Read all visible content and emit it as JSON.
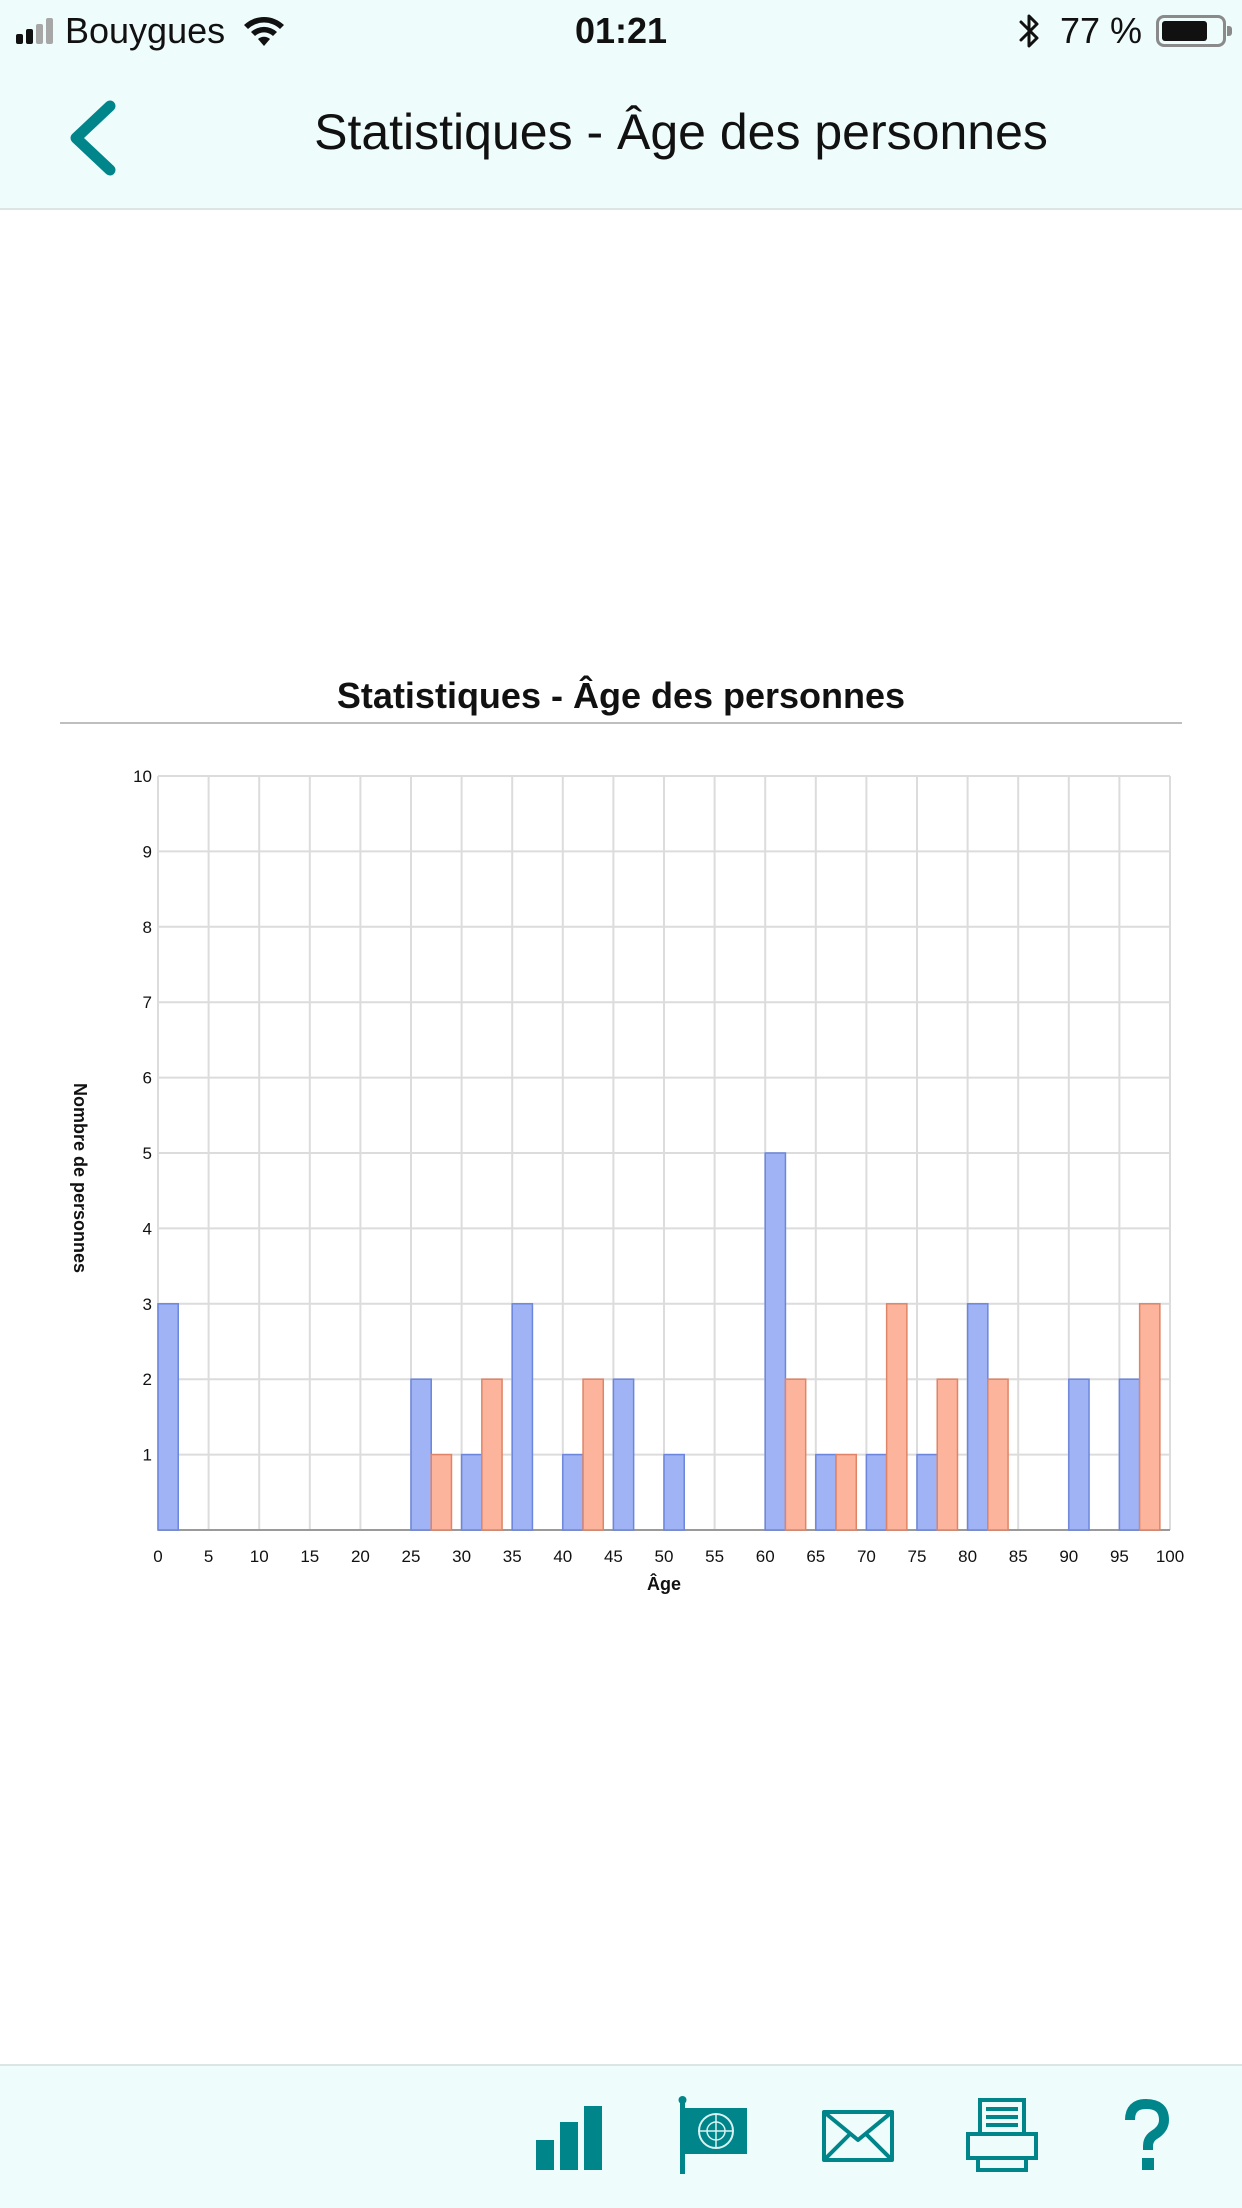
{
  "status_bar": {
    "carrier": "Bouygues",
    "time": "01:21",
    "battery_percent": "77 %",
    "battery_level": 0.77,
    "signal_bars_filled": 2,
    "signal_bars_total": 4
  },
  "nav": {
    "title": "Statistiques - Âge des personnes",
    "back_icon": "chevron-left-icon"
  },
  "colors": {
    "accent": "#00858a",
    "bar_blue": "#9fb3f5",
    "bar_blue_stroke": "#6c86dc",
    "bar_salmon": "#fdb49c",
    "bar_salmon_stroke": "#df8466",
    "toolbar_bg": "#effcfc"
  },
  "chart_data": {
    "type": "bar",
    "title": "Statistiques - Âge des personnes",
    "xlabel": "Âge",
    "ylabel": "Nombre de personnes",
    "ylim": [
      0,
      10
    ],
    "xlim": [
      0,
      100
    ],
    "grid": true,
    "y_ticks": [
      "1",
      "2",
      "3",
      "4",
      "5",
      "6",
      "7",
      "8",
      "9",
      "10"
    ],
    "x_ticks": [
      "0",
      "5",
      "10",
      "15",
      "20",
      "25",
      "30",
      "35",
      "40",
      "45",
      "50",
      "55",
      "60",
      "65",
      "70",
      "75",
      "80",
      "85",
      "90",
      "95",
      "100"
    ],
    "bars": [
      {
        "age": 1,
        "value": 3,
        "color": "blue"
      },
      {
        "age": 26,
        "value": 2,
        "color": "blue"
      },
      {
        "age": 28,
        "value": 1,
        "color": "salmon"
      },
      {
        "age": 31,
        "value": 1,
        "color": "blue"
      },
      {
        "age": 33,
        "value": 2,
        "color": "salmon"
      },
      {
        "age": 36,
        "value": 3,
        "color": "blue"
      },
      {
        "age": 41,
        "value": 1,
        "color": "blue"
      },
      {
        "age": 43,
        "value": 2,
        "color": "salmon"
      },
      {
        "age": 46,
        "value": 2,
        "color": "blue"
      },
      {
        "age": 51,
        "value": 1,
        "color": "blue"
      },
      {
        "age": 61,
        "value": 5,
        "color": "blue"
      },
      {
        "age": 63,
        "value": 2,
        "color": "salmon"
      },
      {
        "age": 66,
        "value": 1,
        "color": "blue"
      },
      {
        "age": 68,
        "value": 1,
        "color": "salmon"
      },
      {
        "age": 71,
        "value": 1,
        "color": "blue"
      },
      {
        "age": 73,
        "value": 3,
        "color": "salmon"
      },
      {
        "age": 76,
        "value": 1,
        "color": "blue"
      },
      {
        "age": 78,
        "value": 2,
        "color": "salmon"
      },
      {
        "age": 81,
        "value": 3,
        "color": "blue"
      },
      {
        "age": 83,
        "value": 2,
        "color": "salmon"
      },
      {
        "age": 91,
        "value": 2,
        "color": "blue"
      },
      {
        "age": 96,
        "value": 2,
        "color": "blue"
      },
      {
        "age": 98,
        "value": 3,
        "color": "salmon"
      }
    ]
  },
  "toolbar": {
    "items": [
      {
        "icon": "bar-chart-icon"
      },
      {
        "icon": "un-flag-icon"
      },
      {
        "icon": "mail-icon"
      },
      {
        "icon": "printer-icon"
      },
      {
        "icon": "help-icon"
      }
    ]
  }
}
